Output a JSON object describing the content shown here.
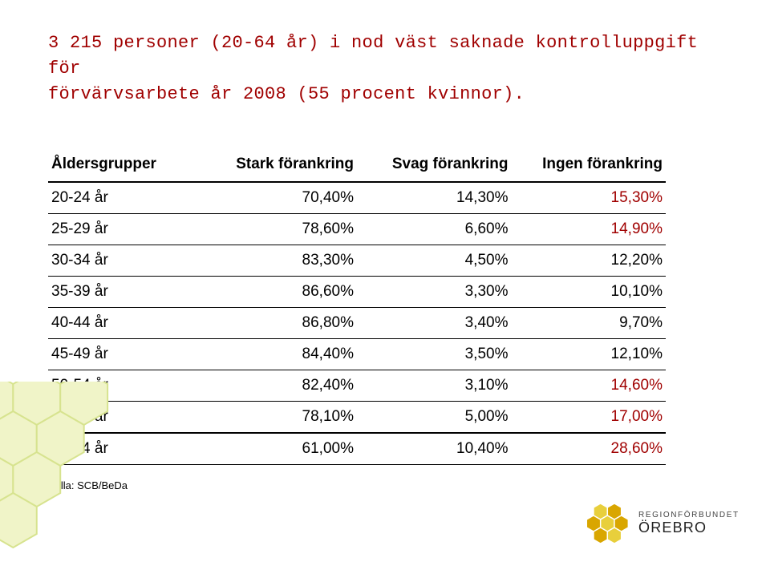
{
  "title_line1": "3 215 personer (20-64 år) i nod väst saknade kontrolluppgift för",
  "title_line2": "förvärvsarbete år 2008 (55 procent kvinnor).",
  "table": {
    "columns": [
      "Åldersgrupper",
      "Stark förankring",
      "Svag förankring",
      "Ingen förankring"
    ],
    "rows": [
      {
        "label": "20-24 år",
        "stark": "70,40%",
        "svag": "14,30%",
        "ingen": "15,30%",
        "hl": true
      },
      {
        "label": "25-29 år",
        "stark": "78,60%",
        "svag": "6,60%",
        "ingen": "14,90%",
        "hl": true
      },
      {
        "label": "30-34 år",
        "stark": "83,30%",
        "svag": "4,50%",
        "ingen": "12,20%",
        "hl": false
      },
      {
        "label": "35-39 år",
        "stark": "86,60%",
        "svag": "3,30%",
        "ingen": "10,10%",
        "hl": false
      },
      {
        "label": "40-44 år",
        "stark": "86,80%",
        "svag": "3,40%",
        "ingen": "9,70%",
        "hl": false
      },
      {
        "label": "45-49 år",
        "stark": "84,40%",
        "svag": "3,50%",
        "ingen": "12,10%",
        "hl": false
      },
      {
        "label": "50-54 år",
        "stark": "82,40%",
        "svag": "3,10%",
        "ingen": "14,60%",
        "hl": true
      },
      {
        "label": "55-59 år",
        "stark": "78,10%",
        "svag": "5,00%",
        "ingen": "17,00%",
        "hl": true
      },
      {
        "label": "60-64 år",
        "stark": "61,00%",
        "svag": "10,40%",
        "ingen": "28,60%",
        "hl": true
      }
    ],
    "header_fontsize": 19,
    "cell_fontsize": 19,
    "highlight_color": "#a00000",
    "text_color": "#000000",
    "border_color": "#000000",
    "heavy_border_width": 2,
    "thin_border_width": 1
  },
  "source": "Källa: SCB/BeDa",
  "logo": {
    "line1": "REGIONFÖRBUNDET",
    "line2": "ÖREBRO",
    "hex_fill_dark": "#d9a600",
    "hex_fill_light": "#e8cf3c",
    "hex_stroke": "#ffffff",
    "text_color_small": "#444444",
    "text_color_large": "#222222"
  },
  "decor": {
    "hex_fill": "#f0f4c8",
    "hex_stroke": "#d7e38f"
  },
  "title_color": "#a00000",
  "title_fontsize": 22,
  "background_color": "#ffffff"
}
